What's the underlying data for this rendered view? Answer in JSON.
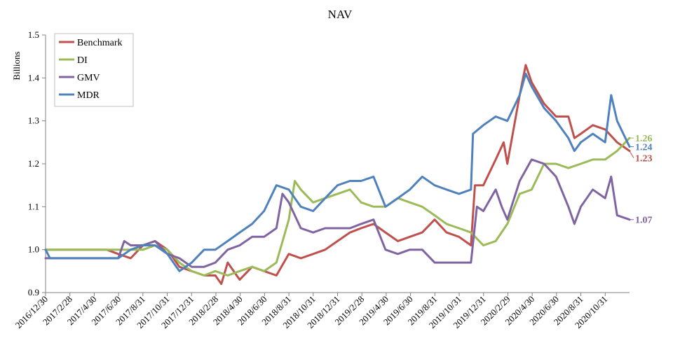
{
  "chart_data": {
    "type": "line",
    "title": "NAV",
    "xlabel": "",
    "ylabel": "Billions",
    "ylim": [
      0.9,
      1.5
    ],
    "yticks": [
      "0.9",
      "1.0",
      "1.1",
      "1.2",
      "1.3",
      "1.4",
      "1.5"
    ],
    "x_start": "2016-12-30",
    "x_end": "2020-12-31",
    "xtick_labels": [
      "2016/12/30",
      "2017/2/28",
      "2017/4/30",
      "2017/6/30",
      "2017/8/31",
      "2017/10/31",
      "2017/12/31",
      "2018/2/28",
      "2018/4/30",
      "2018/6/30",
      "2018/8/31",
      "2018/10/31",
      "2018/12/31",
      "2019/2/28",
      "2019/4/30",
      "2019/6/30",
      "2019/8/31",
      "2019/10/31",
      "2019/12/31",
      "2020/2/29",
      "2020/4/30",
      "2020/6/30",
      "2020/8/31",
      "2020/10/31"
    ],
    "legend_position": "top-left",
    "grid": false,
    "series": [
      {
        "name": "Benchmark",
        "color": "#c0504d",
        "end_label": "1.23",
        "points": [
          [
            "2016-12-30",
            1.0
          ],
          [
            "2017-06-01",
            1.0
          ],
          [
            "2017-06-30",
            0.99
          ],
          [
            "2017-07-31",
            0.98
          ],
          [
            "2017-08-31",
            1.01
          ],
          [
            "2017-09-30",
            1.02
          ],
          [
            "2017-10-31",
            1.0
          ],
          [
            "2017-11-30",
            0.96
          ],
          [
            "2017-12-31",
            0.95
          ],
          [
            "2018-01-31",
            0.94
          ],
          [
            "2018-02-28",
            0.94
          ],
          [
            "2018-03-15",
            0.92
          ],
          [
            "2018-03-31",
            0.97
          ],
          [
            "2018-04-30",
            0.93
          ],
          [
            "2018-05-31",
            0.96
          ],
          [
            "2018-06-30",
            0.95
          ],
          [
            "2018-07-31",
            0.94
          ],
          [
            "2018-08-31",
            0.99
          ],
          [
            "2018-09-30",
            0.98
          ],
          [
            "2018-10-31",
            0.99
          ],
          [
            "2018-11-30",
            1.0
          ],
          [
            "2018-12-31",
            1.02
          ],
          [
            "2019-01-31",
            1.04
          ],
          [
            "2019-02-28",
            1.05
          ],
          [
            "2019-03-31",
            1.06
          ],
          [
            "2019-04-30",
            1.04
          ],
          [
            "2019-05-31",
            1.02
          ],
          [
            "2019-06-30",
            1.03
          ],
          [
            "2019-07-31",
            1.04
          ],
          [
            "2019-08-31",
            1.07
          ],
          [
            "2019-09-30",
            1.04
          ],
          [
            "2019-10-31",
            1.03
          ],
          [
            "2019-11-30",
            1.01
          ],
          [
            "2019-12-10",
            1.15
          ],
          [
            "2019-12-31",
            1.15
          ],
          [
            "2020-01-31",
            1.21
          ],
          [
            "2020-02-20",
            1.25
          ],
          [
            "2020-02-29",
            1.2
          ],
          [
            "2020-03-31",
            1.36
          ],
          [
            "2020-04-15",
            1.43
          ],
          [
            "2020-04-30",
            1.39
          ],
          [
            "2020-05-31",
            1.34
          ],
          [
            "2020-06-30",
            1.31
          ],
          [
            "2020-07-31",
            1.31
          ],
          [
            "2020-08-15",
            1.26
          ],
          [
            "2020-08-31",
            1.27
          ],
          [
            "2020-09-30",
            1.29
          ],
          [
            "2020-10-31",
            1.28
          ],
          [
            "2020-11-30",
            1.25
          ],
          [
            "2020-12-31",
            1.23
          ]
        ]
      },
      {
        "name": "DI",
        "color": "#9bbb59",
        "end_label": "1.26",
        "points": [
          [
            "2016-12-30",
            1.0
          ],
          [
            "2017-06-30",
            1.0
          ],
          [
            "2017-08-31",
            1.0
          ],
          [
            "2017-09-30",
            1.01
          ],
          [
            "2017-10-31",
            1.0
          ],
          [
            "2017-11-30",
            0.97
          ],
          [
            "2017-12-31",
            0.95
          ],
          [
            "2018-01-31",
            0.94
          ],
          [
            "2018-02-28",
            0.95
          ],
          [
            "2018-03-31",
            0.94
          ],
          [
            "2018-04-30",
            0.95
          ],
          [
            "2018-05-31",
            0.96
          ],
          [
            "2018-06-30",
            0.95
          ],
          [
            "2018-07-31",
            0.97
          ],
          [
            "2018-08-31",
            1.07
          ],
          [
            "2018-09-15",
            1.16
          ],
          [
            "2018-09-30",
            1.14
          ],
          [
            "2018-10-31",
            1.11
          ],
          [
            "2018-11-30",
            1.12
          ],
          [
            "2018-12-31",
            1.13
          ],
          [
            "2019-01-31",
            1.14
          ],
          [
            "2019-02-28",
            1.11
          ],
          [
            "2019-03-31",
            1.1
          ],
          [
            "2019-04-30",
            1.1
          ],
          [
            "2019-05-31",
            1.12
          ],
          [
            "2019-06-30",
            1.11
          ],
          [
            "2019-07-31",
            1.1
          ],
          [
            "2019-08-31",
            1.08
          ],
          [
            "2019-09-30",
            1.06
          ],
          [
            "2019-10-31",
            1.05
          ],
          [
            "2019-11-30",
            1.04
          ],
          [
            "2019-12-31",
            1.01
          ],
          [
            "2020-01-31",
            1.02
          ],
          [
            "2020-02-29",
            1.06
          ],
          [
            "2020-03-31",
            1.13
          ],
          [
            "2020-04-30",
            1.14
          ],
          [
            "2020-05-31",
            1.2
          ],
          [
            "2020-06-30",
            1.2
          ],
          [
            "2020-07-31",
            1.19
          ],
          [
            "2020-08-31",
            1.2
          ],
          [
            "2020-09-30",
            1.21
          ],
          [
            "2020-10-31",
            1.21
          ],
          [
            "2020-11-30",
            1.23
          ],
          [
            "2020-12-31",
            1.26
          ]
        ]
      },
      {
        "name": "GMV",
        "color": "#8064a2",
        "end_label": "1.07",
        "points": [
          [
            "2016-12-30",
            0.98
          ],
          [
            "2017-06-30",
            0.98
          ],
          [
            "2017-07-15",
            1.02
          ],
          [
            "2017-07-31",
            1.01
          ],
          [
            "2017-08-31",
            1.01
          ],
          [
            "2017-09-30",
            1.02
          ],
          [
            "2017-10-31",
            0.99
          ],
          [
            "2017-11-30",
            0.98
          ],
          [
            "2017-12-31",
            0.96
          ],
          [
            "2018-01-31",
            0.96
          ],
          [
            "2018-02-28",
            0.97
          ],
          [
            "2018-03-31",
            1.0
          ],
          [
            "2018-04-30",
            1.01
          ],
          [
            "2018-05-31",
            1.03
          ],
          [
            "2018-06-30",
            1.03
          ],
          [
            "2018-07-31",
            1.05
          ],
          [
            "2018-08-15",
            1.13
          ],
          [
            "2018-08-31",
            1.11
          ],
          [
            "2018-09-30",
            1.05
          ],
          [
            "2018-10-31",
            1.04
          ],
          [
            "2018-11-30",
            1.05
          ],
          [
            "2018-12-31",
            1.05
          ],
          [
            "2019-01-31",
            1.05
          ],
          [
            "2019-02-28",
            1.06
          ],
          [
            "2019-03-31",
            1.07
          ],
          [
            "2019-04-30",
            1.0
          ],
          [
            "2019-05-31",
            0.99
          ],
          [
            "2019-06-30",
            1.0
          ],
          [
            "2019-07-31",
            1.0
          ],
          [
            "2019-08-31",
            0.97
          ],
          [
            "2019-09-30",
            0.97
          ],
          [
            "2019-10-31",
            0.97
          ],
          [
            "2019-11-30",
            0.97
          ],
          [
            "2019-12-15",
            1.1
          ],
          [
            "2019-12-31",
            1.09
          ],
          [
            "2020-01-31",
            1.14
          ],
          [
            "2020-02-15",
            1.1
          ],
          [
            "2020-02-29",
            1.07
          ],
          [
            "2020-03-31",
            1.16
          ],
          [
            "2020-04-30",
            1.21
          ],
          [
            "2020-05-31",
            1.2
          ],
          [
            "2020-06-30",
            1.17
          ],
          [
            "2020-07-31",
            1.1
          ],
          [
            "2020-08-15",
            1.06
          ],
          [
            "2020-08-31",
            1.1
          ],
          [
            "2020-09-30",
            1.14
          ],
          [
            "2020-10-31",
            1.12
          ],
          [
            "2020-11-15",
            1.17
          ],
          [
            "2020-11-30",
            1.08
          ],
          [
            "2020-12-31",
            1.07
          ]
        ]
      },
      {
        "name": "MDR",
        "color": "#4f81bd",
        "end_label": "1.24",
        "points": [
          [
            "2016-12-30",
            1.0
          ],
          [
            "2017-01-10",
            0.98
          ],
          [
            "2017-06-30",
            0.98
          ],
          [
            "2017-07-31",
            1.0
          ],
          [
            "2017-08-31",
            1.01
          ],
          [
            "2017-09-30",
            1.01
          ],
          [
            "2017-10-31",
            0.99
          ],
          [
            "2017-11-30",
            0.95
          ],
          [
            "2017-12-31",
            0.97
          ],
          [
            "2018-01-31",
            1.0
          ],
          [
            "2018-02-28",
            1.0
          ],
          [
            "2018-03-31",
            1.02
          ],
          [
            "2018-04-30",
            1.04
          ],
          [
            "2018-05-31",
            1.06
          ],
          [
            "2018-06-30",
            1.09
          ],
          [
            "2018-07-31",
            1.15
          ],
          [
            "2018-08-31",
            1.14
          ],
          [
            "2018-09-30",
            1.1
          ],
          [
            "2018-10-31",
            1.09
          ],
          [
            "2018-11-30",
            1.12
          ],
          [
            "2018-12-31",
            1.15
          ],
          [
            "2019-01-31",
            1.16
          ],
          [
            "2019-02-28",
            1.16
          ],
          [
            "2019-03-31",
            1.17
          ],
          [
            "2019-04-30",
            1.1
          ],
          [
            "2019-05-31",
            1.12
          ],
          [
            "2019-06-30",
            1.14
          ],
          [
            "2019-07-31",
            1.17
          ],
          [
            "2019-08-31",
            1.15
          ],
          [
            "2019-09-30",
            1.14
          ],
          [
            "2019-10-31",
            1.13
          ],
          [
            "2019-11-30",
            1.14
          ],
          [
            "2019-12-05",
            1.27
          ],
          [
            "2019-12-31",
            1.29
          ],
          [
            "2020-01-31",
            1.31
          ],
          [
            "2020-02-29",
            1.3
          ],
          [
            "2020-03-31",
            1.36
          ],
          [
            "2020-04-15",
            1.41
          ],
          [
            "2020-04-30",
            1.38
          ],
          [
            "2020-05-31",
            1.33
          ],
          [
            "2020-06-30",
            1.3
          ],
          [
            "2020-07-31",
            1.26
          ],
          [
            "2020-08-15",
            1.23
          ],
          [
            "2020-08-31",
            1.25
          ],
          [
            "2020-09-30",
            1.27
          ],
          [
            "2020-10-31",
            1.25
          ],
          [
            "2020-11-15",
            1.36
          ],
          [
            "2020-11-30",
            1.3
          ],
          [
            "2020-12-31",
            1.24
          ]
        ]
      }
    ]
  }
}
